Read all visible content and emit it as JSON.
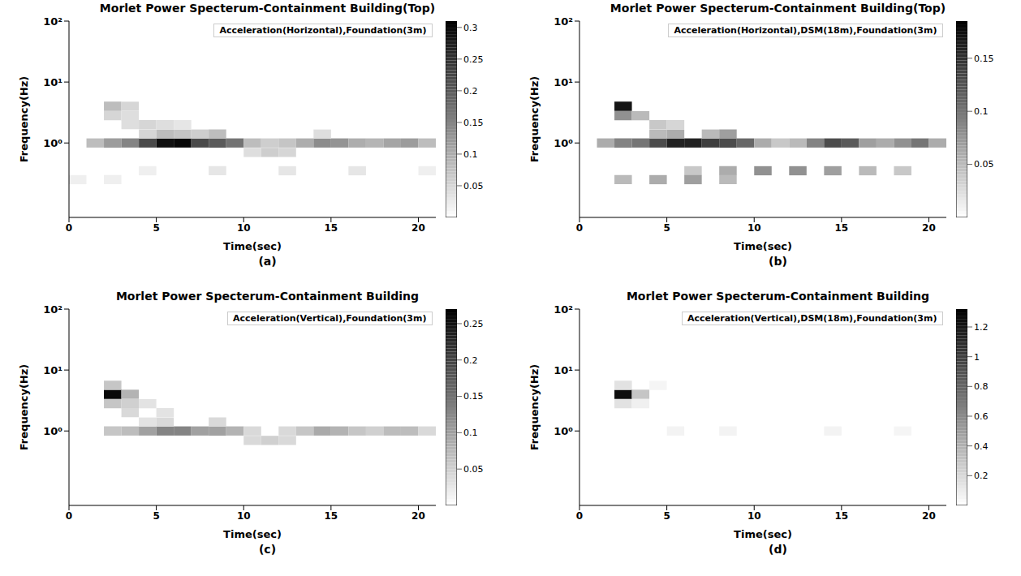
{
  "chart_data": [
    {
      "type": "heatmap",
      "title": "Morlet Power Specterum-Containment Building(Top)",
      "annotation": "Acceleration(Horizontal),Foundation(3m)",
      "panel_label": "(a)",
      "x_label": "Time(sec)",
      "y_label": "Frequency(Hz)",
      "xlim": [
        0,
        21
      ],
      "xticks": [
        0,
        5,
        10,
        15,
        20
      ],
      "ylim": [
        0.06,
        100
      ],
      "yticks": [
        {
          "value": 1,
          "label": "10⁰"
        },
        {
          "value": 10,
          "label": "10¹"
        },
        {
          "value": 100,
          "label": "10²"
        }
      ],
      "log": "y",
      "cells": [
        [
          1.5,
          1.0,
          0.08
        ],
        [
          2.5,
          1.0,
          0.12
        ],
        [
          3.5,
          1.0,
          0.15
        ],
        [
          4.5,
          1.0,
          0.22
        ],
        [
          5.5,
          1.0,
          0.29
        ],
        [
          6.5,
          1.0,
          0.3
        ],
        [
          7.5,
          1.0,
          0.22
        ],
        [
          8.5,
          1.0,
          0.2
        ],
        [
          9.5,
          1.0,
          0.17
        ],
        [
          10.5,
          1.0,
          0.08
        ],
        [
          11.5,
          1.0,
          0.06
        ],
        [
          12.5,
          1.0,
          0.07
        ],
        [
          13.5,
          1.0,
          0.1
        ],
        [
          14.5,
          1.0,
          0.14
        ],
        [
          15.5,
          1.0,
          0.13
        ],
        [
          16.5,
          1.0,
          0.1
        ],
        [
          17.5,
          1.0,
          0.09
        ],
        [
          18.5,
          1.0,
          0.11
        ],
        [
          19.5,
          1.0,
          0.12
        ],
        [
          20.5,
          1.0,
          0.08
        ],
        [
          4.5,
          1.4,
          0.05
        ],
        [
          5.5,
          1.4,
          0.08
        ],
        [
          6.5,
          1.4,
          0.07
        ],
        [
          7.5,
          1.4,
          0.06
        ],
        [
          8.5,
          1.4,
          0.08
        ],
        [
          14.5,
          1.4,
          0.04
        ],
        [
          10.5,
          0.7,
          0.04
        ],
        [
          11.5,
          0.7,
          0.06
        ],
        [
          12.5,
          0.7,
          0.05
        ],
        [
          3.5,
          2.0,
          0.04
        ],
        [
          4.5,
          2.0,
          0.05
        ],
        [
          5.5,
          2.0,
          0.04
        ],
        [
          6.5,
          2.0,
          0.03
        ],
        [
          2.5,
          2.8,
          0.05
        ],
        [
          3.5,
          2.8,
          0.04
        ],
        [
          2.5,
          4.0,
          0.08
        ],
        [
          3.5,
          4.0,
          0.05
        ],
        [
          4.5,
          0.35,
          0.02
        ],
        [
          8.5,
          0.35,
          0.03
        ],
        [
          12.5,
          0.35,
          0.03
        ],
        [
          16.5,
          0.35,
          0.03
        ],
        [
          20.5,
          0.35,
          0.02
        ],
        [
          0.5,
          0.25,
          0.02
        ],
        [
          2.5,
          0.25,
          0.02
        ]
      ],
      "colorbar": {
        "range": [
          0,
          0.31
        ],
        "ticks": [
          0.05,
          0.1,
          0.15,
          0.2,
          0.25,
          0.3
        ]
      }
    },
    {
      "type": "heatmap",
      "title": "Morlet Power Specterum-Containment Building(Top)",
      "annotation": "Acceleration(Horizontal),DSM(18m),Foundation(3m)",
      "panel_label": "(b)",
      "x_label": "Time(sec)",
      "y_label": "Frequency(Hz)",
      "xlim": [
        0,
        21
      ],
      "xticks": [
        0,
        5,
        10,
        15,
        20
      ],
      "ylim": [
        0.06,
        100
      ],
      "yticks": [
        {
          "value": 1,
          "label": "10⁰"
        },
        {
          "value": 10,
          "label": "10¹"
        },
        {
          "value": 100,
          "label": "10²"
        }
      ],
      "log": "y",
      "cells": [
        [
          1.5,
          1.0,
          0.06
        ],
        [
          2.5,
          1.0,
          0.09
        ],
        [
          3.5,
          1.0,
          0.1
        ],
        [
          4.5,
          1.0,
          0.13
        ],
        [
          5.5,
          1.0,
          0.16
        ],
        [
          6.5,
          1.0,
          0.16
        ],
        [
          7.5,
          1.0,
          0.14
        ],
        [
          8.5,
          1.0,
          0.13
        ],
        [
          9.5,
          1.0,
          0.11
        ],
        [
          10.5,
          1.0,
          0.06
        ],
        [
          11.5,
          1.0,
          0.04
        ],
        [
          12.5,
          1.0,
          0.05
        ],
        [
          13.5,
          1.0,
          0.09
        ],
        [
          14.5,
          1.0,
          0.13
        ],
        [
          15.5,
          1.0,
          0.12
        ],
        [
          16.5,
          1.0,
          0.07
        ],
        [
          17.5,
          1.0,
          0.06
        ],
        [
          18.5,
          1.0,
          0.08
        ],
        [
          19.5,
          1.0,
          0.1
        ],
        [
          20.5,
          1.0,
          0.06
        ],
        [
          4.5,
          1.4,
          0.05
        ],
        [
          5.5,
          1.4,
          0.06
        ],
        [
          7.5,
          1.4,
          0.05
        ],
        [
          8.5,
          1.4,
          0.07
        ],
        [
          4.5,
          2.0,
          0.04
        ],
        [
          5.5,
          2.0,
          0.03
        ],
        [
          2.5,
          2.8,
          0.08
        ],
        [
          3.5,
          2.8,
          0.05
        ],
        [
          2.5,
          4.0,
          0.17
        ],
        [
          6.5,
          0.35,
          0.04
        ],
        [
          8.5,
          0.35,
          0.06
        ],
        [
          10.5,
          0.35,
          0.08
        ],
        [
          12.5,
          0.35,
          0.08
        ],
        [
          14.5,
          0.35,
          0.07
        ],
        [
          16.5,
          0.35,
          0.05
        ],
        [
          18.5,
          0.35,
          0.04
        ],
        [
          2.5,
          0.25,
          0.05
        ],
        [
          4.5,
          0.25,
          0.06
        ],
        [
          6.5,
          0.25,
          0.07
        ],
        [
          8.5,
          0.25,
          0.05
        ]
      ],
      "colorbar": {
        "range": [
          0,
          0.185
        ],
        "ticks": [
          0.05,
          0.1,
          0.15
        ]
      }
    },
    {
      "type": "heatmap",
      "title": "Morlet Power Specterum-Containment Building",
      "annotation": "Acceleration(Vertical),Foundation(3m)",
      "panel_label": "(c)",
      "x_label": "Time(sec)",
      "y_label": "Frequency(Hz)",
      "xlim": [
        0,
        21
      ],
      "xticks": [
        0,
        5,
        10,
        15,
        20
      ],
      "ylim": [
        0.06,
        100
      ],
      "yticks": [
        {
          "value": 1,
          "label": "10⁰"
        },
        {
          "value": 10,
          "label": "10¹"
        },
        {
          "value": 100,
          "label": "10²"
        }
      ],
      "log": "y",
      "cells": [
        [
          2.5,
          4.0,
          0.26
        ],
        [
          3.5,
          4.0,
          0.08
        ],
        [
          2.5,
          5.6,
          0.06
        ],
        [
          2.5,
          2.8,
          0.06
        ],
        [
          3.5,
          2.8,
          0.05
        ],
        [
          4.5,
          2.8,
          0.03
        ],
        [
          2.5,
          1.0,
          0.06
        ],
        [
          3.5,
          1.0,
          0.07
        ],
        [
          4.5,
          1.0,
          0.1
        ],
        [
          5.5,
          1.0,
          0.13
        ],
        [
          6.5,
          1.0,
          0.13
        ],
        [
          7.5,
          1.0,
          0.1
        ],
        [
          8.5,
          1.0,
          0.1
        ],
        [
          9.5,
          1.0,
          0.08
        ],
        [
          10.5,
          1.0,
          0.04
        ],
        [
          12.5,
          1.0,
          0.04
        ],
        [
          13.5,
          1.0,
          0.06
        ],
        [
          14.5,
          1.0,
          0.09
        ],
        [
          15.5,
          1.0,
          0.08
        ],
        [
          16.5,
          1.0,
          0.06
        ],
        [
          17.5,
          1.0,
          0.05
        ],
        [
          18.5,
          1.0,
          0.07
        ],
        [
          19.5,
          1.0,
          0.07
        ],
        [
          20.5,
          1.0,
          0.04
        ],
        [
          10.5,
          0.7,
          0.04
        ],
        [
          11.5,
          0.7,
          0.05
        ],
        [
          12.5,
          0.7,
          0.04
        ],
        [
          4.5,
          1.4,
          0.03
        ],
        [
          5.5,
          1.4,
          0.04
        ],
        [
          8.5,
          1.4,
          0.04
        ],
        [
          3.5,
          2.0,
          0.04
        ],
        [
          5.5,
          2.0,
          0.03
        ]
      ],
      "colorbar": {
        "range": [
          0,
          0.27
        ],
        "ticks": [
          0.05,
          0.1,
          0.15,
          0.2,
          0.25
        ]
      }
    },
    {
      "type": "heatmap",
      "title": "Morlet Power Specterum-Containment Building",
      "annotation": "Acceleration(Vertical),DSM(18m),Foundation(3m)",
      "panel_label": "(d)",
      "x_label": "Time(sec)",
      "y_label": "Frequency(Hz)",
      "xlim": [
        0,
        21
      ],
      "xticks": [
        0,
        5,
        10,
        15,
        20
      ],
      "ylim": [
        0.06,
        100
      ],
      "yticks": [
        {
          "value": 1,
          "label": "10⁰"
        },
        {
          "value": 10,
          "label": "10¹"
        },
        {
          "value": 100,
          "label": "10²"
        }
      ],
      "log": "y",
      "cells": [
        [
          2.5,
          4.0,
          1.25
        ],
        [
          3.5,
          4.0,
          0.3
        ],
        [
          2.5,
          5.6,
          0.15
        ],
        [
          4.5,
          5.6,
          0.05
        ],
        [
          2.5,
          2.8,
          0.15
        ],
        [
          3.5,
          2.8,
          0.08
        ],
        [
          5.5,
          1.0,
          0.06
        ],
        [
          8.5,
          1.0,
          0.06
        ],
        [
          14.5,
          1.0,
          0.06
        ],
        [
          18.5,
          1.0,
          0.05
        ]
      ],
      "colorbar": {
        "range": [
          0,
          1.32
        ],
        "ticks": [
          0.2,
          0.4,
          0.6,
          0.8,
          1,
          1.2
        ]
      }
    }
  ]
}
